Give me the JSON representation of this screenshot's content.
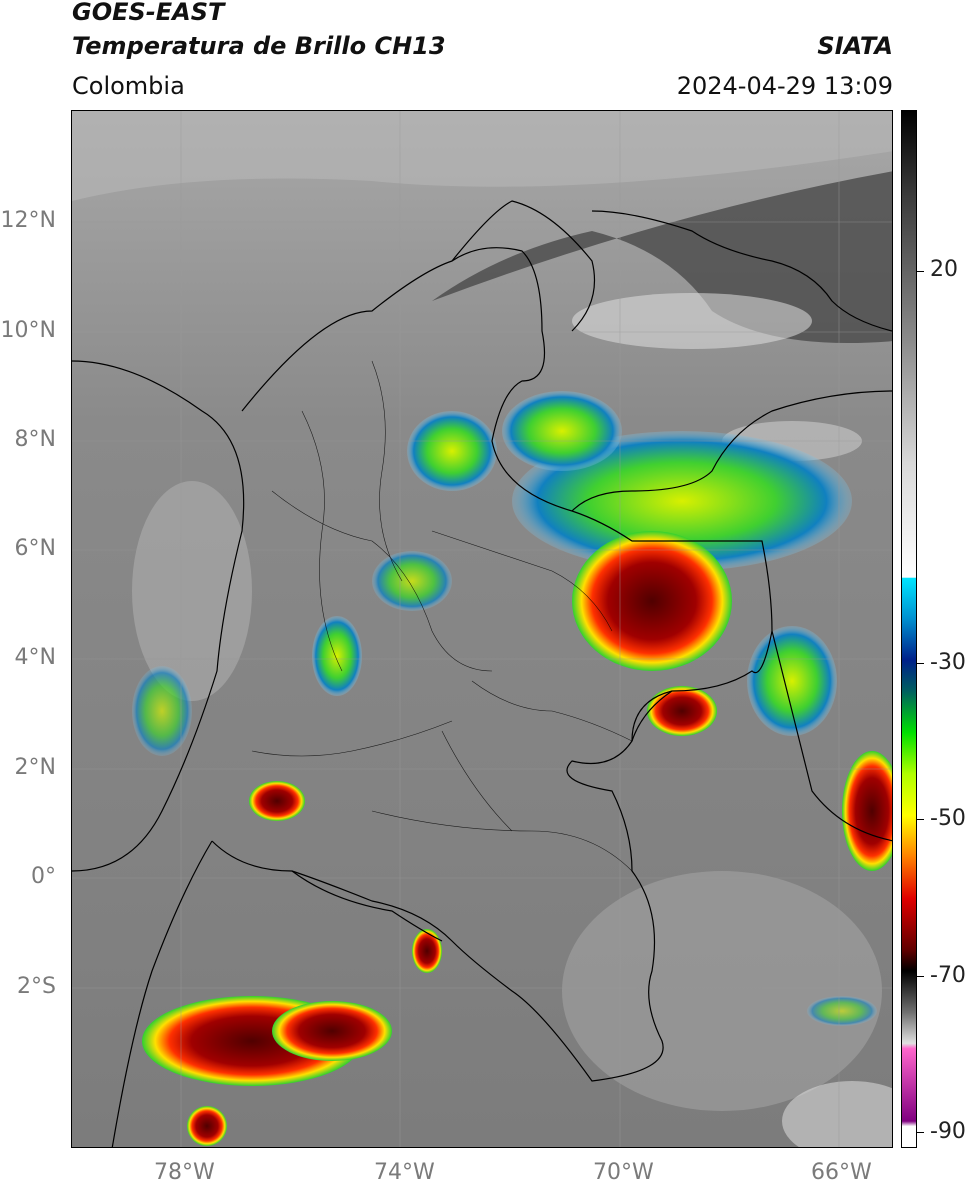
{
  "header": {
    "title_line1": "GOES-EAST",
    "title_line2": "Temperatura de Brillo CH13",
    "region": "Colombia",
    "brand": "SIATA",
    "timestamp": "2024-04-29 13:09"
  },
  "axes": {
    "lat_ticks": [
      "12°N",
      "10°N",
      "8°N",
      "6°N",
      "4°N",
      "2°N",
      "0°",
      "2°S"
    ],
    "lon_ticks": [
      "78°W",
      "74°W",
      "70°W",
      "66°W"
    ]
  },
  "colorbar": {
    "ticks": [
      "20",
      "-30",
      "-50",
      "-70",
      "-90"
    ],
    "gradient_stops": [
      {
        "color": "#000000",
        "pos": 0
      },
      {
        "color": "#3a3a3a",
        "pos": 0.08
      },
      {
        "color": "#8a8a8a",
        "pos": 0.22
      },
      {
        "color": "#d8d8d8",
        "pos": 0.34
      },
      {
        "color": "#ffffff",
        "pos": 0.45
      },
      {
        "color": "#00e5ff",
        "pos": 0.451
      },
      {
        "color": "#0090d0",
        "pos": 0.49
      },
      {
        "color": "#00208a",
        "pos": 0.53
      },
      {
        "color": "#006060",
        "pos": 0.56
      },
      {
        "color": "#00e000",
        "pos": 0.6
      },
      {
        "color": "#b0ff00",
        "pos": 0.64
      },
      {
        "color": "#ffff00",
        "pos": 0.68
      },
      {
        "color": "#ff8000",
        "pos": 0.72
      },
      {
        "color": "#e00000",
        "pos": 0.76
      },
      {
        "color": "#600000",
        "pos": 0.81
      },
      {
        "color": "#000000",
        "pos": 0.83
      },
      {
        "color": "#707070",
        "pos": 0.87
      },
      {
        "color": "#e0e0e0",
        "pos": 0.9
      },
      {
        "color": "#ff66cc",
        "pos": 0.905
      },
      {
        "color": "#800080",
        "pos": 0.975
      },
      {
        "color": "#ffffff",
        "pos": 0.98
      }
    ]
  },
  "colors": {
    "cold_cloud_core": "#6a0000",
    "cloud_green": "#3fd02f",
    "cloud_yellow": "#f0e020",
    "cloud_blue": "#1060c0",
    "sea_dark": "#3a3a3a"
  }
}
